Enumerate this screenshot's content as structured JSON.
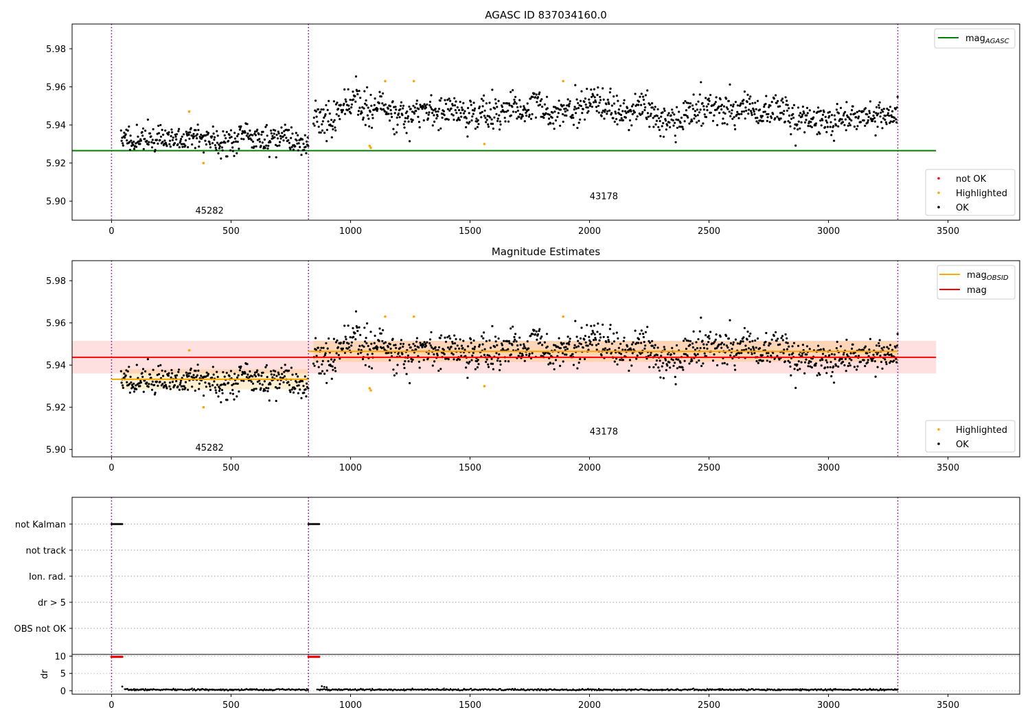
{
  "chart_data": [
    {
      "id": "agasc",
      "type": "scatter",
      "title": "AGASC ID 837034160.0",
      "xlim": [
        -165,
        3800
      ],
      "ylim": [
        5.89,
        5.993
      ],
      "x_ticks": [
        0,
        500,
        1000,
        1500,
        2000,
        2500,
        3000,
        3500
      ],
      "y_ticks": [
        5.9,
        5.92,
        5.94,
        5.96,
        5.98
      ],
      "y_tick_labels": [
        "5.90",
        "5.92",
        "5.94",
        "5.96",
        "5.98"
      ],
      "obs_boundaries": [
        0,
        824,
        3290
      ],
      "obs_labels": [
        {
          "text": "45282",
          "x": 410,
          "y": 5.8935
        },
        {
          "text": "43178",
          "x": 2060,
          "y": 5.901
        }
      ],
      "segments": [
        {
          "x0": 40,
          "x1": 824,
          "mean": 5.933,
          "sd": 0.0045,
          "seed": 11
        },
        {
          "x0": 845,
          "x1": 3290,
          "mean": 5.946,
          "sd": 0.0055,
          "seed": 23
        }
      ],
      "highlighted": [
        [
          325,
          5.947
        ],
        [
          385,
          5.92
        ],
        [
          1080,
          5.929
        ],
        [
          1085,
          5.928
        ],
        [
          1145,
          5.963
        ],
        [
          1265,
          5.963
        ],
        [
          1560,
          5.93
        ],
        [
          1890,
          5.963
        ]
      ],
      "lines": [
        {
          "name": "mag_AGASC",
          "label_main": "mag",
          "label_sub": "AGASC",
          "color": "#008000",
          "x0": -165,
          "x1": 3450,
          "y": 5.9265
        }
      ],
      "legend_lines": [
        {
          "label_main": "mag",
          "label_sub": "AGASC",
          "color": "#008000"
        }
      ],
      "legend_points": [
        {
          "label": "not OK",
          "color": "#ff0000"
        },
        {
          "label": "Highlighted",
          "color": "#ffa500"
        },
        {
          "label": "OK",
          "color": "#000000"
        }
      ]
    },
    {
      "id": "estimates",
      "type": "scatter",
      "title": "Magnitude Estimates",
      "xlim": [
        -165,
        3800
      ],
      "ylim": [
        5.8965,
        5.9895
      ],
      "x_ticks": [
        0,
        500,
        1000,
        1500,
        2000,
        2500,
        3000,
        3500
      ],
      "y_ticks": [
        5.9,
        5.92,
        5.94,
        5.96,
        5.98
      ],
      "y_tick_labels": [
        "5.90",
        "5.92",
        "5.94",
        "5.96",
        "5.98"
      ],
      "obs_boundaries": [
        0,
        824,
        3290
      ],
      "obs_labels": [
        {
          "text": "45282",
          "x": 410,
          "y": 5.8995
        },
        {
          "text": "43178",
          "x": 2060,
          "y": 5.907
        }
      ],
      "bands": [
        {
          "x0": -165,
          "x1": 3450,
          "y0": 5.936,
          "y1": 5.9515,
          "color": "#ff0000",
          "opacity": 0.12
        },
        {
          "x0": 40,
          "x1": 824,
          "y0": 5.9285,
          "y1": 5.938,
          "color": "#ffa500",
          "opacity": 0.18
        },
        {
          "x0": 845,
          "x1": 3290,
          "y0": 5.9415,
          "y1": 5.9515,
          "color": "#ffa500",
          "opacity": 0.18
        }
      ],
      "lines": [
        {
          "name": "mag",
          "color": "#ff0000",
          "x0": -165,
          "x1": 3450,
          "y": 5.9437
        },
        {
          "name": "mag_OBSID",
          "color": "#ffa500",
          "x0": 0,
          "x1": 824,
          "y": 5.9333
        },
        {
          "name": "mag_OBSID",
          "color": "#ffa500",
          "x0": 824,
          "x1": 3290,
          "y": 5.9465
        }
      ],
      "legend_lines": [
        {
          "label_main": "mag",
          "label_sub": "OBSID",
          "color": "#ffa500"
        },
        {
          "label_main": "mag",
          "label_sub": "",
          "color": "#ff0000"
        }
      ],
      "legend_points": [
        {
          "label": "Highlighted",
          "color": "#ffa500"
        },
        {
          "label": "OK",
          "color": "#000000"
        }
      ]
    },
    {
      "id": "flags",
      "type": "scatter",
      "categories": [
        "not Kalman",
        "not track",
        "Ion. rad.",
        "dr > 5",
        "OBS not OK"
      ],
      "flag_runs": [
        {
          "category": "not Kalman",
          "x0": 0,
          "x1": 45
        },
        {
          "category": "not Kalman",
          "x0": 824,
          "x1": 870
        }
      ],
      "xlim": [
        -165,
        3800
      ]
    },
    {
      "id": "dr",
      "type": "scatter",
      "ylabel": "dr",
      "xlim": [
        -165,
        3800
      ],
      "ylim": [
        -1,
        10.5
      ],
      "x_ticks": [
        0,
        500,
        1000,
        1500,
        2000,
        2500,
        3000,
        3500
      ],
      "y_ticks": [
        0,
        5,
        10
      ],
      "y_tick_labels": [
        "0",
        "5",
        "10"
      ],
      "clipped_runs": [
        {
          "x0": 0,
          "x1": 45,
          "y": 9.8
        },
        {
          "x0": 824,
          "x1": 870,
          "y": 9.8
        }
      ],
      "spike_points": [
        [
          45,
          1.2
        ],
        [
          880,
          1.3
        ],
        [
          890,
          1.1
        ],
        [
          900,
          1.0
        ]
      ],
      "baseline": 0.3
    }
  ]
}
